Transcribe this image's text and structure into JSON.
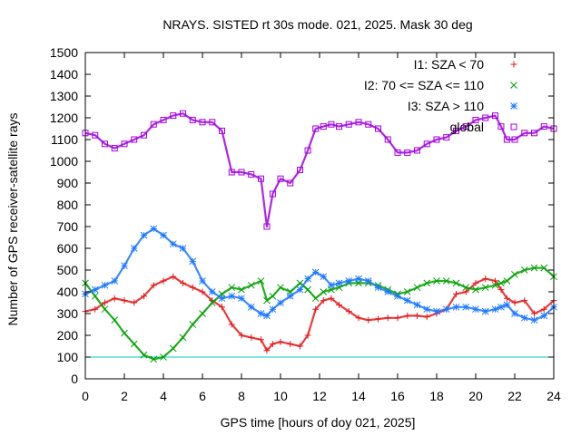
{
  "chart_data": {
    "type": "scatter",
    "title": "NRAYS. SISTED rt 30s mode. 021, 2025. Mask 30 deg",
    "xlabel": "GPS time [hours of doy 021, 2025]",
    "ylabel": "Number of GPS receiver-satellite rays",
    "xlim": [
      0,
      24
    ],
    "ylim": [
      0,
      1500
    ],
    "xticks": [
      0,
      2,
      4,
      6,
      8,
      10,
      12,
      14,
      16,
      18,
      20,
      22,
      24
    ],
    "yticks": [
      0,
      100,
      200,
      300,
      400,
      500,
      600,
      700,
      800,
      900,
      1000,
      1100,
      1200,
      1300,
      1400,
      1500
    ],
    "reference_line": {
      "y": 100,
      "color": "#00cccc"
    },
    "legend_position": "top-right",
    "series": [
      {
        "name": "I1: SZA < 70",
        "color": "#e41a1c",
        "marker": "+",
        "x": [
          0,
          0.5,
          1,
          1.5,
          2,
          2.5,
          3,
          3.5,
          4,
          4.5,
          5,
          5.5,
          6,
          6.5,
          7,
          7.5,
          8,
          8.5,
          9,
          9.3,
          9.6,
          10,
          10.5,
          11,
          11.4,
          11.8,
          12.2,
          12.6,
          13,
          13.5,
          14,
          14.5,
          15,
          15.5,
          16,
          16.5,
          17,
          17.5,
          18,
          18.5,
          19,
          19.5,
          20,
          20.5,
          21,
          21.3,
          21.6,
          22,
          22.5,
          23,
          23.5,
          24
        ],
        "y": [
          310,
          320,
          350,
          370,
          360,
          350,
          380,
          430,
          450,
          470,
          440,
          420,
          400,
          360,
          330,
          250,
          200,
          190,
          180,
          130,
          160,
          170,
          160,
          150,
          200,
          320,
          360,
          370,
          340,
          310,
          280,
          270,
          275,
          280,
          280,
          290,
          290,
          285,
          300,
          320,
          390,
          400,
          440,
          460,
          450,
          410,
          370,
          350,
          360,
          300,
          320,
          360
        ]
      },
      {
        "name": "I2: 70 <= SZA <= 110",
        "color": "#00a000",
        "marker": "x",
        "x": [
          0,
          0.5,
          1,
          1.5,
          2,
          2.5,
          3,
          3.5,
          4,
          4.5,
          5,
          5.5,
          6,
          6.5,
          7,
          7.5,
          8,
          8.5,
          9,
          9.3,
          9.6,
          10,
          10.5,
          11,
          11.4,
          11.8,
          12.2,
          12.6,
          13,
          13.5,
          14,
          14.5,
          15,
          15.5,
          16,
          16.5,
          17,
          17.5,
          18,
          18.5,
          19,
          19.5,
          20,
          20.5,
          21,
          21.3,
          21.6,
          22,
          22.5,
          23,
          23.5,
          24
        ],
        "y": [
          440,
          380,
          320,
          270,
          210,
          160,
          110,
          90,
          100,
          140,
          190,
          250,
          300,
          350,
          390,
          420,
          410,
          430,
          450,
          360,
          380,
          420,
          400,
          440,
          410,
          370,
          400,
          410,
          420,
          440,
          440,
          440,
          430,
          410,
          390,
          400,
          420,
          440,
          450,
          450,
          440,
          420,
          410,
          420,
          430,
          440,
          450,
          480,
          500,
          510,
          510,
          470
        ]
      },
      {
        "name": "I3: SZA > 110",
        "color": "#1e78ff",
        "marker": "*",
        "x": [
          0,
          0.5,
          1,
          1.5,
          2,
          2.5,
          3,
          3.5,
          4,
          4.5,
          5,
          5.5,
          6,
          6.5,
          7,
          7.5,
          8,
          8.5,
          9,
          9.3,
          9.6,
          10,
          10.5,
          11,
          11.4,
          11.8,
          12.2,
          12.6,
          13,
          13.5,
          14,
          14.5,
          15,
          15.5,
          16,
          16.5,
          17,
          17.5,
          18,
          18.5,
          19,
          19.5,
          20,
          20.5,
          21,
          21.3,
          21.6,
          22,
          22.5,
          23,
          23.5,
          24
        ],
        "y": [
          390,
          410,
          430,
          450,
          520,
          600,
          660,
          690,
          660,
          620,
          600,
          540,
          450,
          400,
          370,
          380,
          370,
          330,
          300,
          290,
          320,
          350,
          380,
          410,
          460,
          490,
          470,
          430,
          440,
          450,
          460,
          450,
          420,
          400,
          380,
          360,
          340,
          320,
          310,
          320,
          330,
          330,
          320,
          310,
          320,
          330,
          340,
          300,
          280,
          270,
          290,
          330
        ]
      },
      {
        "name": "global",
        "color": "#a000e0",
        "marker": "square",
        "x": [
          0,
          0.5,
          1,
          1.5,
          2,
          2.5,
          3,
          3.5,
          4,
          4.5,
          5,
          5.5,
          6,
          6.5,
          7,
          7.5,
          8,
          8.5,
          9,
          9.3,
          9.6,
          10,
          10.5,
          11,
          11.4,
          11.8,
          12.2,
          12.6,
          13,
          13.5,
          14,
          14.5,
          15,
          15.5,
          16,
          16.5,
          17,
          17.5,
          18,
          18.5,
          19,
          19.5,
          20,
          20.5,
          21,
          21.3,
          21.6,
          22,
          22.5,
          23,
          23.5,
          24
        ],
        "y": [
          1130,
          1120,
          1080,
          1060,
          1080,
          1100,
          1120,
          1170,
          1190,
          1210,
          1220,
          1190,
          1180,
          1180,
          1140,
          950,
          950,
          940,
          920,
          700,
          850,
          920,
          900,
          960,
          1050,
          1150,
          1160,
          1170,
          1160,
          1170,
          1180,
          1170,
          1150,
          1100,
          1040,
          1040,
          1050,
          1080,
          1100,
          1110,
          1140,
          1160,
          1190,
          1200,
          1210,
          1160,
          1100,
          1100,
          1130,
          1130,
          1160,
          1150
        ]
      }
    ]
  }
}
